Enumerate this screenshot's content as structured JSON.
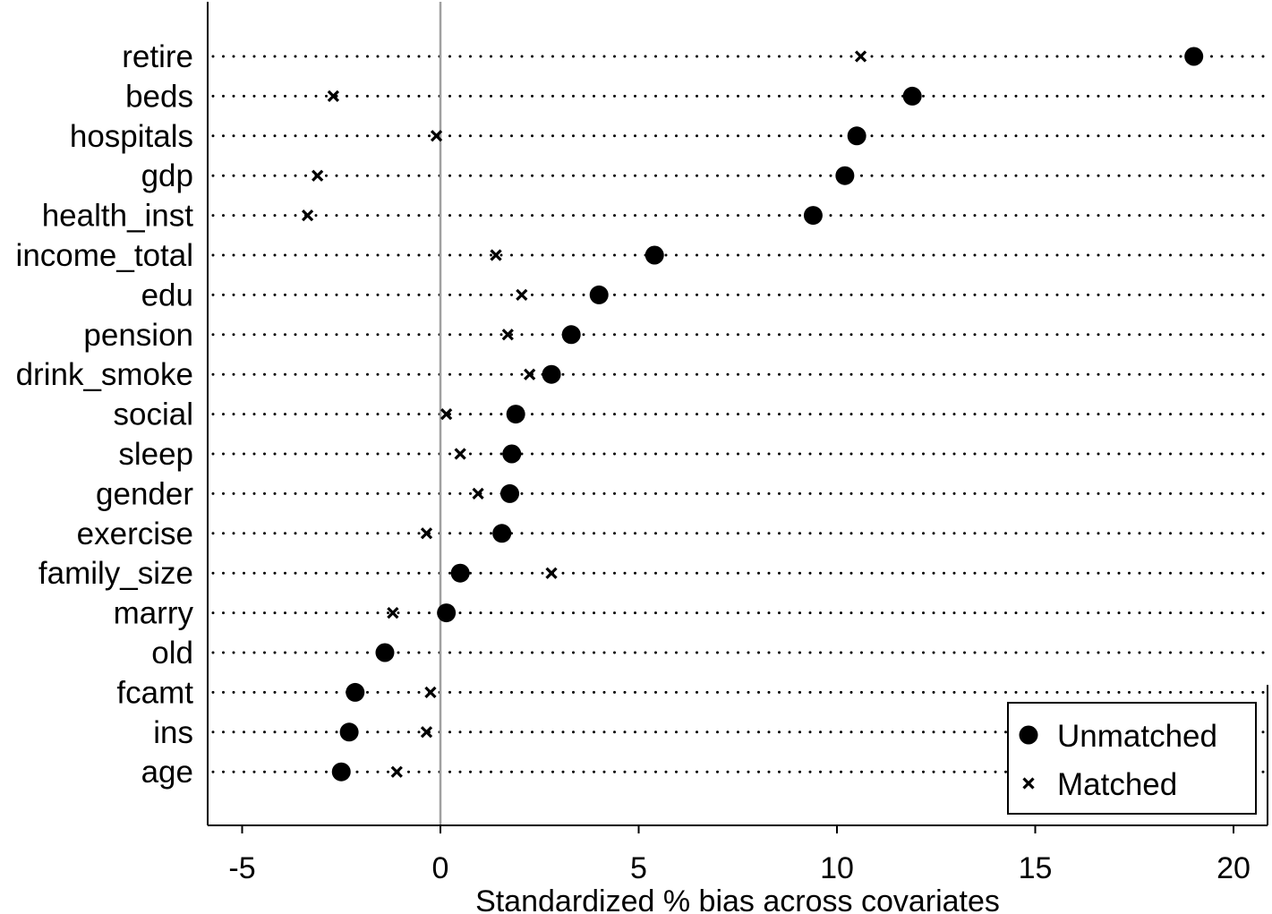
{
  "chart_data": {
    "type": "scatter",
    "xlabel": "Standardized % bias across covariates",
    "xlim": [
      -6.8,
      20.8
    ],
    "xticks": [
      -5,
      0,
      5,
      10,
      15,
      20
    ],
    "xtick_labels": [
      "-5",
      "0",
      "5",
      "10",
      "15",
      "20"
    ],
    "reference_line_x": 0,
    "categories": [
      "retire",
      "beds",
      "hospitals",
      "gdp",
      "health_inst",
      "income_total",
      "edu",
      "pension",
      "drink_smoke",
      "social",
      "sleep",
      "gender",
      "exercise",
      "family_size",
      "marry",
      "old",
      "fcamt",
      "ins",
      "age"
    ],
    "series": [
      {
        "name": "Unmatched",
        "marker": "circle",
        "values": [
          19.0,
          11.9,
          10.5,
          10.2,
          9.4,
          5.4,
          4.0,
          3.3,
          2.8,
          1.9,
          1.8,
          1.75,
          1.55,
          0.5,
          0.15,
          -1.4,
          -2.15,
          -2.3,
          -2.5
        ]
      },
      {
        "name": "Matched",
        "marker": "x",
        "values": [
          10.6,
          -2.7,
          -0.1,
          -3.1,
          -3.35,
          1.4,
          2.05,
          1.7,
          2.25,
          0.15,
          0.5,
          0.95,
          -0.35,
          2.8,
          -1.2,
          null,
          -0.25,
          -0.35,
          -1.1
        ]
      }
    ],
    "grid": "dotted row lines",
    "legend_position": "bottom-right"
  },
  "colors": {
    "marker": "#000000",
    "reference_line": "#a0a0a0",
    "dotted_line": "#000000",
    "axis": "#000000"
  }
}
